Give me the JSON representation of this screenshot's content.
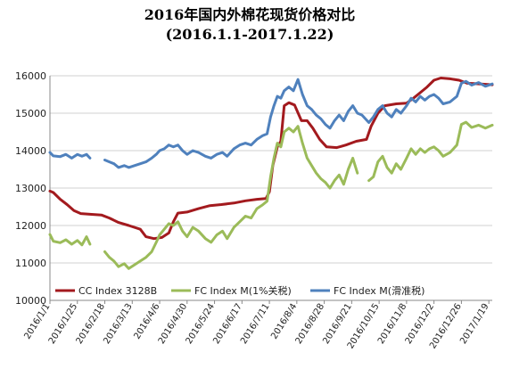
{
  "chart_data": {
    "type": "line",
    "title": "2016年国内外棉花现货价格对比",
    "subtitle": "(2016.1.1-2017.1.22)",
    "xlabel": "",
    "ylabel": "",
    "ylim": [
      10000,
      16000
    ],
    "yticks": [
      10000,
      11000,
      12000,
      13000,
      14000,
      15000,
      16000
    ],
    "xlim": [
      "2016-01-01",
      "2017-01-22"
    ],
    "xticks": [
      "2016/1/1",
      "2016/1/25",
      "2016/2/18",
      "2016/3/13",
      "2016/4/6",
      "2016/4/30",
      "2016/5/24",
      "2016/6/17",
      "2016/7/11",
      "2016/8/4",
      "2016/8/28",
      "2016/9/21",
      "2016/10/15",
      "2016/11/8",
      "2016/12/2",
      "2016/12/26",
      "2017/1/19"
    ],
    "grid": "horizontal",
    "legend_position": "bottom",
    "series": [
      {
        "name": "CC Index 3128B",
        "color": "#a31a1e",
        "points": [
          [
            "2016-01-01",
            12920
          ],
          [
            "2016-01-04",
            12880
          ],
          [
            "2016-01-10",
            12700
          ],
          [
            "2016-01-16",
            12560
          ],
          [
            "2016-01-22",
            12400
          ],
          [
            "2016-01-28",
            12320
          ],
          [
            "2016-02-05",
            12300
          ],
          [
            "2016-02-15",
            12280
          ],
          [
            "2016-02-22",
            12200
          ],
          [
            "2016-03-01",
            12080
          ],
          [
            "2016-03-10",
            12000
          ],
          [
            "2016-03-20",
            11900
          ],
          [
            "2016-03-25",
            11700
          ],
          [
            "2016-04-01",
            11650
          ],
          [
            "2016-04-08",
            11680
          ],
          [
            "2016-04-14",
            11800
          ],
          [
            "2016-04-18",
            12100
          ],
          [
            "2016-04-22",
            12330
          ],
          [
            "2016-04-30",
            12360
          ],
          [
            "2016-05-10",
            12450
          ],
          [
            "2016-05-20",
            12530
          ],
          [
            "2016-05-30",
            12560
          ],
          [
            "2016-06-10",
            12600
          ],
          [
            "2016-06-20",
            12660
          ],
          [
            "2016-06-30",
            12700
          ],
          [
            "2016-07-08",
            12720
          ],
          [
            "2016-07-11",
            12900
          ],
          [
            "2016-07-14",
            13600
          ],
          [
            "2016-07-18",
            14100
          ],
          [
            "2016-07-21",
            14250
          ],
          [
            "2016-07-24",
            15200
          ],
          [
            "2016-07-28",
            15280
          ],
          [
            "2016-08-02",
            15220
          ],
          [
            "2016-08-08",
            14800
          ],
          [
            "2016-08-13",
            14800
          ],
          [
            "2016-08-18",
            14600
          ],
          [
            "2016-08-24",
            14300
          ],
          [
            "2016-08-30",
            14100
          ],
          [
            "2016-09-08",
            14080
          ],
          [
            "2016-09-16",
            14150
          ],
          [
            "2016-09-25",
            14250
          ],
          [
            "2016-10-04",
            14300
          ],
          [
            "2016-10-08",
            14650
          ],
          [
            "2016-10-14",
            15000
          ],
          [
            "2016-10-20",
            15200
          ],
          [
            "2016-10-30",
            15250
          ],
          [
            "2016-11-08",
            15270
          ],
          [
            "2016-11-14",
            15400
          ],
          [
            "2016-11-20",
            15550
          ],
          [
            "2016-11-26",
            15700
          ],
          [
            "2016-12-02",
            15880
          ],
          [
            "2016-12-08",
            15940
          ],
          [
            "2016-12-16",
            15920
          ],
          [
            "2016-12-24",
            15880
          ],
          [
            "2016-12-31",
            15800
          ],
          [
            "2017-01-06",
            15790
          ],
          [
            "2017-01-12",
            15780
          ],
          [
            "2017-01-18",
            15770
          ],
          [
            "2017-01-22",
            15760
          ]
        ]
      },
      {
        "name": "FC Index M(1%关税)",
        "color": "#9bbb59",
        "points": [
          [
            "2016-01-01",
            11760
          ],
          [
            "2016-01-04",
            11580
          ],
          [
            "2016-01-10",
            11540
          ],
          [
            "2016-01-15",
            11620
          ],
          [
            "2016-01-20",
            11500
          ],
          [
            "2016-01-25",
            11600
          ],
          [
            "2016-01-29",
            11480
          ],
          [
            "2016-02-02",
            11700
          ],
          [
            "2016-02-05",
            11500
          ],
          [
            "2016-02-12",
            null
          ],
          [
            "2016-02-18",
            11300
          ],
          [
            "2016-02-22",
            11150
          ],
          [
            "2016-02-26",
            11050
          ],
          [
            "2016-03-01",
            10900
          ],
          [
            "2016-03-06",
            10980
          ],
          [
            "2016-03-10",
            10850
          ],
          [
            "2016-03-15",
            10950
          ],
          [
            "2016-03-20",
            11050
          ],
          [
            "2016-03-25",
            11150
          ],
          [
            "2016-03-30",
            11300
          ],
          [
            "2016-04-03",
            11550
          ],
          [
            "2016-04-06",
            11750
          ],
          [
            "2016-04-10",
            11900
          ],
          [
            "2016-04-14",
            12050
          ],
          [
            "2016-04-18",
            12000
          ],
          [
            "2016-04-22",
            12100
          ],
          [
            "2016-04-26",
            11850
          ],
          [
            "2016-04-30",
            11700
          ],
          [
            "2016-05-05",
            11950
          ],
          [
            "2016-05-10",
            11850
          ],
          [
            "2016-05-16",
            11650
          ],
          [
            "2016-05-21",
            11550
          ],
          [
            "2016-05-26",
            11750
          ],
          [
            "2016-05-31",
            11850
          ],
          [
            "2016-06-04",
            11650
          ],
          [
            "2016-06-10",
            11950
          ],
          [
            "2016-06-15",
            12100
          ],
          [
            "2016-06-20",
            12250
          ],
          [
            "2016-06-25",
            12200
          ],
          [
            "2016-06-30",
            12450
          ],
          [
            "2016-07-05",
            12550
          ],
          [
            "2016-07-09",
            12650
          ],
          [
            "2016-07-12",
            13300
          ],
          [
            "2016-07-15",
            13800
          ],
          [
            "2016-07-18",
            14200
          ],
          [
            "2016-07-21",
            14100
          ],
          [
            "2016-07-24",
            14500
          ],
          [
            "2016-07-28",
            14600
          ],
          [
            "2016-08-01",
            14500
          ],
          [
            "2016-08-05",
            14650
          ],
          [
            "2016-08-09",
            14200
          ],
          [
            "2016-08-13",
            13800
          ],
          [
            "2016-08-17",
            13600
          ],
          [
            "2016-08-21",
            13400
          ],
          [
            "2016-08-25",
            13250
          ],
          [
            "2016-08-29",
            13150
          ],
          [
            "2016-09-02",
            13000
          ],
          [
            "2016-09-06",
            13200
          ],
          [
            "2016-09-10",
            13350
          ],
          [
            "2016-09-14",
            13100
          ],
          [
            "2016-09-18",
            13500
          ],
          [
            "2016-09-22",
            13800
          ],
          [
            "2016-09-26",
            13400
          ],
          [
            "2016-09-30",
            null
          ],
          [
            "2016-10-06",
            13200
          ],
          [
            "2016-10-10",
            13300
          ],
          [
            "2016-10-14",
            13700
          ],
          [
            "2016-10-18",
            13850
          ],
          [
            "2016-10-22",
            13550
          ],
          [
            "2016-10-26",
            13400
          ],
          [
            "2016-10-30",
            13650
          ],
          [
            "2016-11-03",
            13500
          ],
          [
            "2016-11-08",
            13800
          ],
          [
            "2016-11-12",
            14050
          ],
          [
            "2016-11-16",
            13900
          ],
          [
            "2016-11-20",
            14050
          ],
          [
            "2016-11-24",
            13950
          ],
          [
            "2016-11-28",
            14050
          ],
          [
            "2016-12-02",
            14100
          ],
          [
            "2016-12-06",
            14000
          ],
          [
            "2016-12-10",
            13850
          ],
          [
            "2016-12-16",
            13950
          ],
          [
            "2016-12-22",
            14150
          ],
          [
            "2016-12-26",
            14700
          ],
          [
            "2016-12-30",
            14760
          ],
          [
            "2017-01-04",
            14620
          ],
          [
            "2017-01-10",
            14680
          ],
          [
            "2017-01-16",
            14600
          ],
          [
            "2017-01-22",
            14680
          ]
        ]
      },
      {
        "name": "FC Index M(滑准税)",
        "color": "#4f81bd",
        "points": [
          [
            "2016-01-01",
            13950
          ],
          [
            "2016-01-04",
            13860
          ],
          [
            "2016-01-10",
            13840
          ],
          [
            "2016-01-15",
            13900
          ],
          [
            "2016-01-20",
            13800
          ],
          [
            "2016-01-25",
            13900
          ],
          [
            "2016-01-29",
            13850
          ],
          [
            "2016-02-02",
            13900
          ],
          [
            "2016-02-05",
            13800
          ],
          [
            "2016-02-12",
            null
          ],
          [
            "2016-02-18",
            13750
          ],
          [
            "2016-02-22",
            13700
          ],
          [
            "2016-02-26",
            13650
          ],
          [
            "2016-03-01",
            13550
          ],
          [
            "2016-03-06",
            13600
          ],
          [
            "2016-03-10",
            13550
          ],
          [
            "2016-03-15",
            13600
          ],
          [
            "2016-03-20",
            13650
          ],
          [
            "2016-03-25",
            13700
          ],
          [
            "2016-03-30",
            13800
          ],
          [
            "2016-04-03",
            13900
          ],
          [
            "2016-04-06",
            14000
          ],
          [
            "2016-04-10",
            14050
          ],
          [
            "2016-04-14",
            14150
          ],
          [
            "2016-04-18",
            14100
          ],
          [
            "2016-04-22",
            14150
          ],
          [
            "2016-04-26",
            14000
          ],
          [
            "2016-04-30",
            13900
          ],
          [
            "2016-05-05",
            14000
          ],
          [
            "2016-05-10",
            13950
          ],
          [
            "2016-05-16",
            13850
          ],
          [
            "2016-05-21",
            13800
          ],
          [
            "2016-05-26",
            13900
          ],
          [
            "2016-05-31",
            13950
          ],
          [
            "2016-06-04",
            13850
          ],
          [
            "2016-06-10",
            14050
          ],
          [
            "2016-06-15",
            14150
          ],
          [
            "2016-06-20",
            14200
          ],
          [
            "2016-06-25",
            14150
          ],
          [
            "2016-06-30",
            14300
          ],
          [
            "2016-07-05",
            14400
          ],
          [
            "2016-07-09",
            14450
          ],
          [
            "2016-07-12",
            14900
          ],
          [
            "2016-07-15",
            15200
          ],
          [
            "2016-07-18",
            15450
          ],
          [
            "2016-07-21",
            15400
          ],
          [
            "2016-07-24",
            15600
          ],
          [
            "2016-07-28",
            15700
          ],
          [
            "2016-08-01",
            15600
          ],
          [
            "2016-08-05",
            15900
          ],
          [
            "2016-08-09",
            15500
          ],
          [
            "2016-08-13",
            15200
          ],
          [
            "2016-08-17",
            15100
          ],
          [
            "2016-08-21",
            14950
          ],
          [
            "2016-08-25",
            14850
          ],
          [
            "2016-08-29",
            14700
          ],
          [
            "2016-09-02",
            14600
          ],
          [
            "2016-09-06",
            14800
          ],
          [
            "2016-09-10",
            14950
          ],
          [
            "2016-09-14",
            14800
          ],
          [
            "2016-09-18",
            15050
          ],
          [
            "2016-09-22",
            15200
          ],
          [
            "2016-09-26",
            15000
          ],
          [
            "2016-09-30",
            14950
          ],
          [
            "2016-10-06",
            14750
          ],
          [
            "2016-10-10",
            14900
          ],
          [
            "2016-10-14",
            15100
          ],
          [
            "2016-10-18",
            15200
          ],
          [
            "2016-10-22",
            15000
          ],
          [
            "2016-10-26",
            14900
          ],
          [
            "2016-10-30",
            15100
          ],
          [
            "2016-11-03",
            15000
          ],
          [
            "2016-11-08",
            15200
          ],
          [
            "2016-11-12",
            15400
          ],
          [
            "2016-11-16",
            15300
          ],
          [
            "2016-11-20",
            15450
          ],
          [
            "2016-11-24",
            15350
          ],
          [
            "2016-11-28",
            15450
          ],
          [
            "2016-12-02",
            15500
          ],
          [
            "2016-12-06",
            15400
          ],
          [
            "2016-12-10",
            15250
          ],
          [
            "2016-12-16",
            15300
          ],
          [
            "2016-12-22",
            15450
          ],
          [
            "2016-12-26",
            15800
          ],
          [
            "2016-12-30",
            15850
          ],
          [
            "2017-01-04",
            15750
          ],
          [
            "2017-01-10",
            15820
          ],
          [
            "2017-01-16",
            15720
          ],
          [
            "2017-01-22",
            15780
          ]
        ]
      }
    ]
  }
}
